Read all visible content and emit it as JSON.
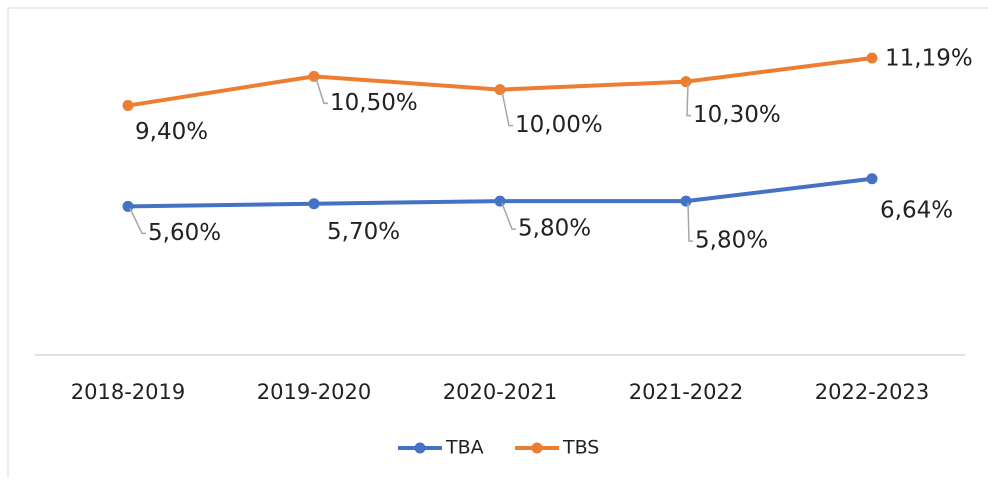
{
  "chart_data": {
    "type": "line",
    "categories": [
      "2018-2019",
      "2019-2020",
      "2020-2021",
      "2021-2022",
      "2022-2023"
    ],
    "series": [
      {
        "name": "TBA",
        "color": "#4472c4",
        "values": [
          5.6,
          5.7,
          5.8,
          5.8,
          6.64
        ],
        "value_labels": [
          "5,60%",
          "5,70%",
          "5,80%",
          "5,80%",
          "6,64%"
        ]
      },
      {
        "name": "TBS",
        "color": "#ed7d31",
        "values": [
          9.4,
          10.5,
          10.0,
          10.3,
          11.19
        ],
        "value_labels": [
          "9,40%",
          "10,50%",
          "10,00%",
          "10,30%",
          "11,19%"
        ]
      }
    ],
    "ylim": [
      0,
      13
    ],
    "legend": "bottom"
  }
}
